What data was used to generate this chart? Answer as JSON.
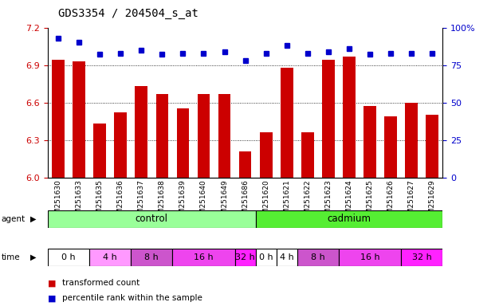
{
  "title": "GDS3354 / 204504_s_at",
  "samples": [
    "GSM251630",
    "GSM251633",
    "GSM251635",
    "GSM251636",
    "GSM251637",
    "GSM251638",
    "GSM251639",
    "GSM251640",
    "GSM251649",
    "GSM251686",
    "GSM251620",
    "GSM251621",
    "GSM251622",
    "GSM251623",
    "GSM251624",
    "GSM251625",
    "GSM251626",
    "GSM251627",
    "GSM251629"
  ],
  "bar_values": [
    6.94,
    6.93,
    6.43,
    6.52,
    6.73,
    6.67,
    6.55,
    6.67,
    6.67,
    6.21,
    6.36,
    6.88,
    6.36,
    6.94,
    6.97,
    6.57,
    6.49,
    6.6,
    6.5
  ],
  "percentile_values": [
    93,
    90,
    82,
    83,
    85,
    82,
    83,
    83,
    84,
    78,
    83,
    88,
    83,
    84,
    86,
    82,
    83,
    83,
    83
  ],
  "ylim_left": [
    6.0,
    7.2
  ],
  "ylim_right": [
    0,
    100
  ],
  "yticks_left": [
    6.0,
    6.3,
    6.6,
    6.9,
    7.2
  ],
  "yticks_right": [
    0,
    25,
    50,
    75,
    100
  ],
  "bar_color": "#cc0000",
  "dot_color": "#0000cc",
  "bar_width": 0.6,
  "grid_color": "#000000",
  "control_label": "control",
  "cadmium_label": "cadmium",
  "control_color": "#99ff99",
  "cadmium_color": "#55ee33",
  "bg_color": "#ffffff",
  "axis_color_left": "#cc0000",
  "axis_color_right": "#0000cc",
  "title_fontsize": 10,
  "tick_fontsize": 8,
  "sample_fontsize": 6.5,
  "time_groups": [
    [
      0,
      2,
      "0 h",
      "#ffffff"
    ],
    [
      2,
      4,
      "4 h",
      "#ff99ff"
    ],
    [
      4,
      6,
      "8 h",
      "#cc55cc"
    ],
    [
      6,
      9,
      "16 h",
      "#ee44ee"
    ],
    [
      9,
      10,
      "32 h",
      "#ff22ff"
    ],
    [
      10,
      11,
      "0 h",
      "#ffffff"
    ],
    [
      11,
      12,
      "4 h",
      "#ffffff"
    ],
    [
      12,
      14,
      "8 h",
      "#cc55cc"
    ],
    [
      14,
      17,
      "16 h",
      "#ee44ee"
    ],
    [
      17,
      19,
      "32 h",
      "#ff22ff"
    ]
  ],
  "legend_bar_label": "transformed count",
  "legend_dot_label": "percentile rank within the sample"
}
